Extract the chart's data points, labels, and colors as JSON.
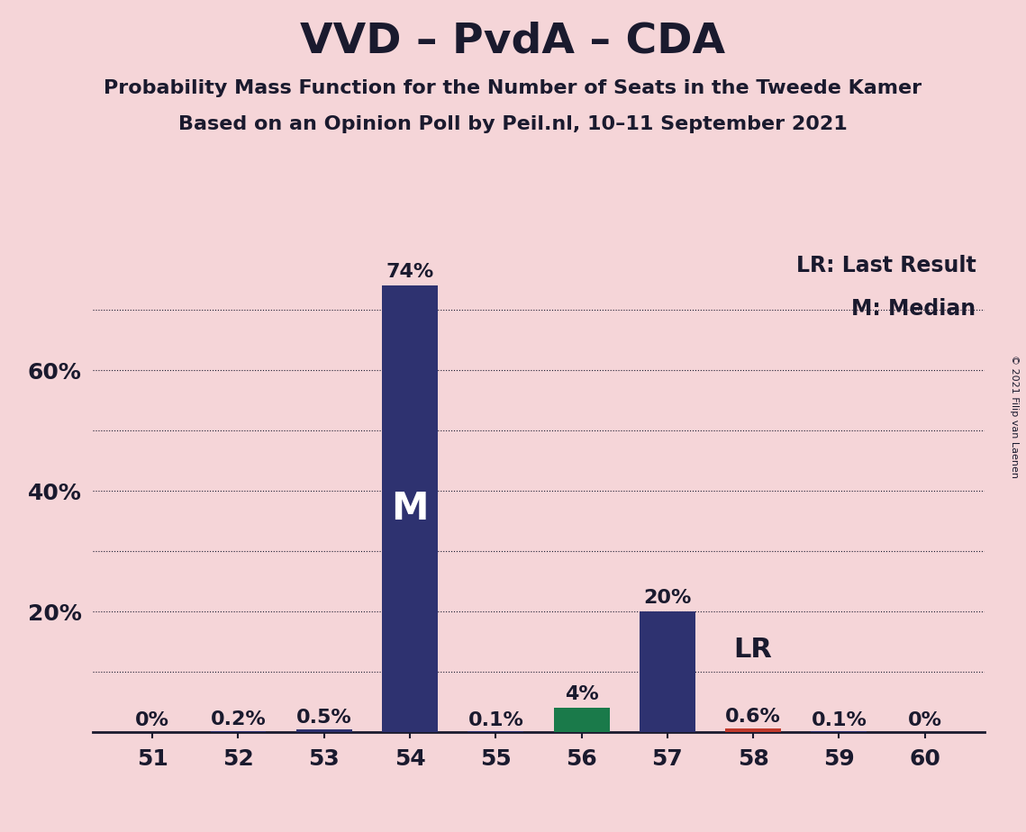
{
  "title": "VVD – PvdA – CDA",
  "subtitle1": "Probability Mass Function for the Number of Seats in the Tweede Kamer",
  "subtitle2": "Based on an Opinion Poll by Peil.nl, 10–11 September 2021",
  "copyright": "© 2021 Filip van Laenen",
  "seats": [
    51,
    52,
    53,
    54,
    55,
    56,
    57,
    58,
    59,
    60
  ],
  "probabilities": [
    0.0,
    0.2,
    0.5,
    74.0,
    0.1,
    4.0,
    20.0,
    0.6,
    0.1,
    0.0
  ],
  "bar_colors": [
    "#2e3270",
    "#2e3270",
    "#2e3270",
    "#2e3270",
    "#2e3270",
    "#1a7a4a",
    "#2e3270",
    "#c0392b",
    "#2e3270",
    "#2e3270"
  ],
  "labels": [
    "0%",
    "0.2%",
    "0.5%",
    "74%",
    "0.1%",
    "4%",
    "20%",
    "0.6%",
    "0.1%",
    "0%"
  ],
  "median_seat": 54,
  "lr_seat": 58,
  "background_color": "#f5d5d8",
  "ytick_labels": [
    "20%",
    "40%",
    "60%"
  ],
  "ytick_values": [
    20,
    40,
    60
  ],
  "grid_values": [
    10,
    20,
    30,
    40,
    50,
    60,
    70
  ],
  "ylim": [
    0,
    80
  ],
  "grid_color": "#1a1a2e",
  "title_fontsize": 34,
  "subtitle_fontsize": 16,
  "label_fontsize": 16,
  "tick_fontsize": 18,
  "bar_width": 0.65
}
